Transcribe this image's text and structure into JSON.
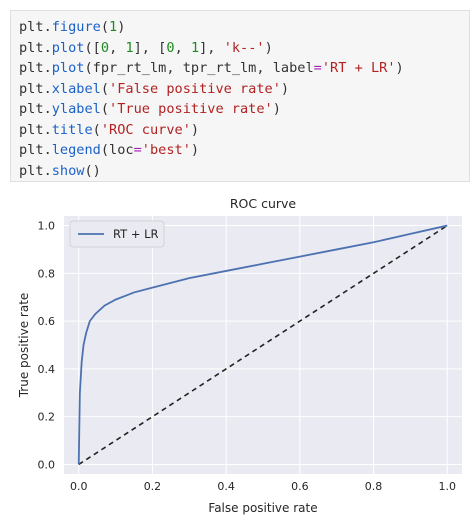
{
  "code_cell": {
    "lines": [
      [
        {
          "t": "plt",
          "c": "var"
        },
        {
          "t": ".",
          "c": "punct"
        },
        {
          "t": "figure",
          "c": "func"
        },
        {
          "t": "(",
          "c": "punct"
        },
        {
          "t": "1",
          "c": "num"
        },
        {
          "t": ")",
          "c": "punct"
        }
      ],
      [
        {
          "t": "plt",
          "c": "var"
        },
        {
          "t": ".",
          "c": "punct"
        },
        {
          "t": "plot",
          "c": "func"
        },
        {
          "t": "([",
          "c": "punct"
        },
        {
          "t": "0",
          "c": "num"
        },
        {
          "t": ", ",
          "c": "punct"
        },
        {
          "t": "1",
          "c": "num"
        },
        {
          "t": "], [",
          "c": "punct"
        },
        {
          "t": "0",
          "c": "num"
        },
        {
          "t": ", ",
          "c": "punct"
        },
        {
          "t": "1",
          "c": "num"
        },
        {
          "t": "], ",
          "c": "punct"
        },
        {
          "t": "'k--'",
          "c": "str"
        },
        {
          "t": ")",
          "c": "punct"
        }
      ],
      [
        {
          "t": "plt",
          "c": "var"
        },
        {
          "t": ".",
          "c": "punct"
        },
        {
          "t": "plot",
          "c": "func"
        },
        {
          "t": "(fpr_rt_lm, tpr_rt_lm, ",
          "c": "punct"
        },
        {
          "t": "label",
          "c": "param"
        },
        {
          "t": "=",
          "c": "op"
        },
        {
          "t": "'RT + LR'",
          "c": "str"
        },
        {
          "t": ")",
          "c": "punct"
        }
      ],
      [
        {
          "t": "plt",
          "c": "var"
        },
        {
          "t": ".",
          "c": "punct"
        },
        {
          "t": "xlabel",
          "c": "func"
        },
        {
          "t": "(",
          "c": "punct"
        },
        {
          "t": "'False positive rate'",
          "c": "str"
        },
        {
          "t": ")",
          "c": "punct"
        }
      ],
      [
        {
          "t": "plt",
          "c": "var"
        },
        {
          "t": ".",
          "c": "punct"
        },
        {
          "t": "ylabel",
          "c": "func"
        },
        {
          "t": "(",
          "c": "punct"
        },
        {
          "t": "'True positive rate'",
          "c": "str"
        },
        {
          "t": ")",
          "c": "punct"
        }
      ],
      [
        {
          "t": "plt",
          "c": "var"
        },
        {
          "t": ".",
          "c": "punct"
        },
        {
          "t": "title",
          "c": "func"
        },
        {
          "t": "(",
          "c": "punct"
        },
        {
          "t": "'ROC curve'",
          "c": "str"
        },
        {
          "t": ")",
          "c": "punct"
        }
      ],
      [
        {
          "t": "plt",
          "c": "var"
        },
        {
          "t": ".",
          "c": "punct"
        },
        {
          "t": "legend",
          "c": "func"
        },
        {
          "t": "(",
          "c": "punct"
        },
        {
          "t": "loc",
          "c": "param"
        },
        {
          "t": "=",
          "c": "op"
        },
        {
          "t": "'best'",
          "c": "str"
        },
        {
          "t": ")",
          "c": "punct"
        }
      ],
      [
        {
          "t": "plt",
          "c": "var"
        },
        {
          "t": ".",
          "c": "punct"
        },
        {
          "t": "show",
          "c": "func"
        },
        {
          "t": "()",
          "c": "punct"
        }
      ]
    ]
  },
  "chart_data": {
    "type": "line",
    "title": "ROC curve",
    "xlabel": "False positive rate",
    "ylabel": "True positive rate",
    "xlim": [
      -0.04,
      1.04
    ],
    "ylim": [
      -0.04,
      1.04
    ],
    "xticks": [
      0.0,
      0.2,
      0.4,
      0.6,
      0.8,
      1.0
    ],
    "yticks": [
      0.0,
      0.2,
      0.4,
      0.6,
      0.8,
      1.0
    ],
    "xtick_labels": [
      "0.0",
      "0.2",
      "0.4",
      "0.6",
      "0.8",
      "1.0"
    ],
    "ytick_labels": [
      "0.0",
      "0.2",
      "0.4",
      "0.6",
      "0.8",
      "1.0"
    ],
    "grid": true,
    "legend_position": "top-left",
    "style": "seaborn-darkgrid",
    "colors": {
      "axes_bg": "#eaeaf2",
      "grid": "#ffffff",
      "series": "#4c72b0",
      "diagonal": "#222222",
      "text": "#262626"
    },
    "series": [
      {
        "name": "RT + LR",
        "style": "solid",
        "x": [
          0.0,
          0.003,
          0.008,
          0.013,
          0.02,
          0.03,
          0.045,
          0.07,
          0.1,
          0.15,
          0.2,
          0.3,
          0.4,
          0.5,
          0.6,
          0.7,
          0.8,
          0.9,
          1.0
        ],
        "y": [
          0.0,
          0.3,
          0.43,
          0.5,
          0.55,
          0.6,
          0.63,
          0.665,
          0.69,
          0.72,
          0.74,
          0.78,
          0.81,
          0.84,
          0.87,
          0.9,
          0.93,
          0.965,
          1.0
        ]
      },
      {
        "style": "dashed",
        "x": [
          0,
          1
        ],
        "y": [
          0,
          1
        ]
      }
    ]
  }
}
